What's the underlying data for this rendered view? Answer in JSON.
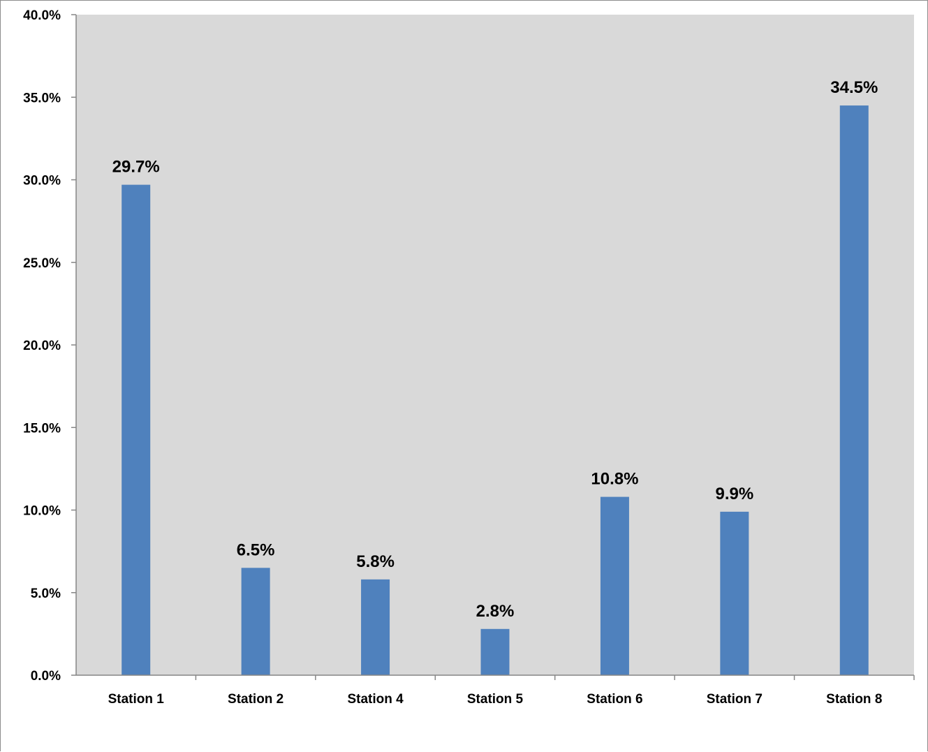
{
  "chart_data": {
    "type": "bar",
    "title": "",
    "xlabel": "",
    "ylabel": "",
    "categories": [
      "Station 1",
      "Station 2",
      "Station 4",
      "Station 5",
      "Station 6",
      "Station 7",
      "Station 8"
    ],
    "values": [
      29.7,
      6.5,
      5.8,
      2.8,
      10.8,
      9.9,
      34.5
    ],
    "data_labels": [
      "29.7%",
      "6.5%",
      "5.8%",
      "2.8%",
      "10.8%",
      "9.9%",
      "34.5%"
    ],
    "ylim": [
      0,
      40
    ],
    "y_ticks": [
      0,
      5,
      10,
      15,
      20,
      25,
      30,
      35,
      40
    ],
    "y_tick_labels": [
      "0.0%",
      "5.0%",
      "10.0%",
      "15.0%",
      "20.0%",
      "25.0%",
      "30.0%",
      "35.0%",
      "40.0%"
    ],
    "grid": false,
    "legend": "none",
    "colors": {
      "bar": "#4f81bd",
      "plot_background": "#d9d9d9",
      "axis": "#868686"
    }
  }
}
